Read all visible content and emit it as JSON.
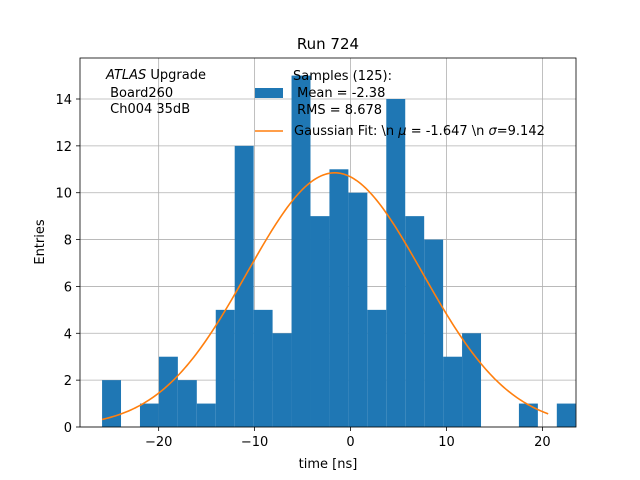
{
  "chart_data": {
    "type": "bar",
    "title": "Run 724",
    "xlabel": "time [ns]",
    "ylabel": "Entries",
    "xlim": [
      -28.2,
      23.5
    ],
    "ylim": [
      0,
      15.75
    ],
    "grid": true,
    "xticks": [
      -20,
      -10,
      0,
      10,
      20
    ],
    "yticks": [
      0,
      2,
      4,
      6,
      8,
      10,
      12,
      14
    ],
    "xtick_labels": [
      "−20",
      "−10",
      "0",
      "10",
      "20"
    ],
    "ytick_labels": [
      "0",
      "2",
      "4",
      "6",
      "8",
      "10",
      "12",
      "14"
    ],
    "histogram": {
      "bin_start": -25.9,
      "bin_width": 1.975,
      "counts": [
        2,
        0,
        1,
        3,
        2,
        1,
        5,
        12,
        5,
        4,
        15,
        9,
        11,
        10,
        5,
        14,
        9,
        8,
        3,
        4,
        0,
        0,
        1,
        0,
        1
      ],
      "color": "#1f77b4"
    },
    "fit": {
      "mu": -1.647,
      "sigma": 9.142,
      "peak": 10.85,
      "x_range": [
        -25.9,
        20.6
      ],
      "color": "#ff7f0e"
    },
    "annotation": {
      "italic": "ATLAS",
      "rest": " Upgrade",
      "line2": " Board260",
      "line3": " Ch004 35dB"
    },
    "legend": {
      "position": "top-right",
      "hist_line1": "Samples (125):",
      "hist_line2": " Mean = -2.38",
      "hist_line3": " RMS = 8.678",
      "fit_label_a": "Gaussian Fit: \\n ",
      "fit_mu_symbol": "μ",
      "fit_label_b": " = -1.647 \\n ",
      "fit_sigma_symbol": "σ",
      "fit_label_c": "=9.142"
    }
  }
}
